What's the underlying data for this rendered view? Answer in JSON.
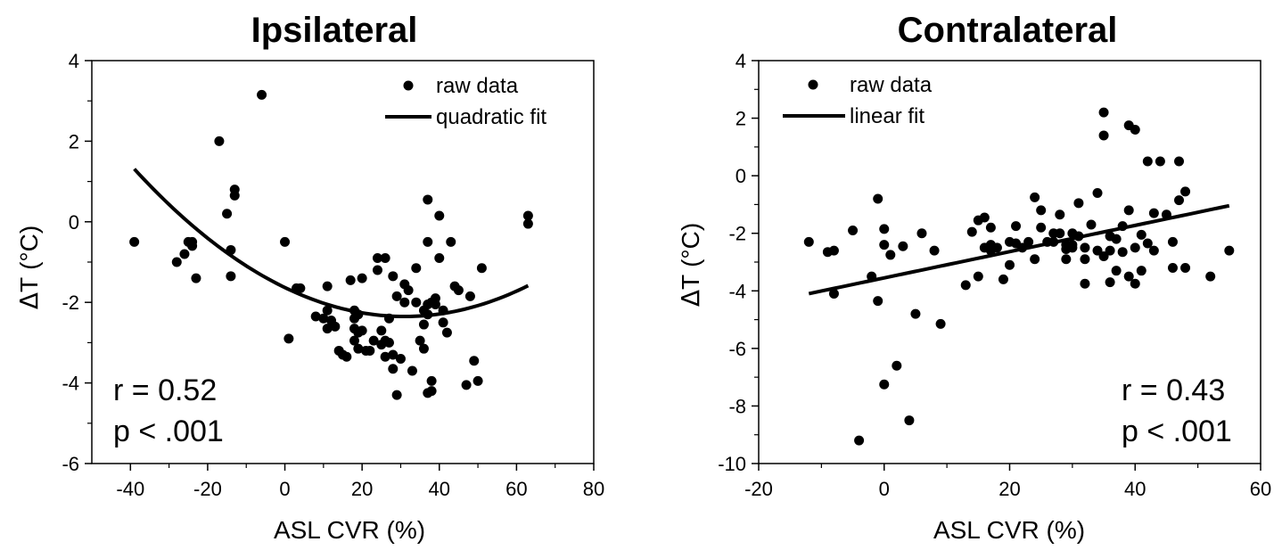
{
  "colors": {
    "marker": "#000000",
    "fit": "#000000",
    "axis": "#000000"
  },
  "chart_data": [
    {
      "type": "scatter",
      "title": "Ipsilateral",
      "xlabel": "ASL CVR (%)",
      "ylabel_delta": "Δ",
      "ylabel_var": "T",
      "ylabel_unit": "(°C)",
      "xlim": [
        -50,
        80
      ],
      "ylim": [
        -6,
        4
      ],
      "xticks": [
        -40,
        -20,
        0,
        20,
        40,
        60,
        80
      ],
      "yticks": [
        -6,
        -4,
        -2,
        0,
        2,
        4
      ],
      "legend": {
        "position": "top-right",
        "scatter_label": "raw data",
        "fit_label": "quadratic fit"
      },
      "annotation": {
        "r": "r = 0.52",
        "p": "p < .001",
        "position": "bottom-left"
      },
      "fit": {
        "kind": "quadratic",
        "x_range": [
          -39,
          63
        ],
        "center": 31,
        "vertex_y": -2.35,
        "curvature": 0.000747
      },
      "series": [
        {
          "name": "raw data",
          "x": [
            -39,
            -28,
            -26,
            -25,
            -24,
            -24,
            -23,
            -17,
            -15,
            -14,
            -14,
            -13,
            -13,
            -6,
            0,
            1,
            3,
            4,
            8,
            10,
            11,
            11,
            11,
            12,
            13,
            14,
            15,
            16,
            17,
            18,
            18,
            18,
            18,
            19,
            19,
            19,
            20,
            20,
            21,
            22,
            23,
            24,
            24,
            25,
            25,
            26,
            26,
            26,
            27,
            27,
            28,
            28,
            28,
            29,
            29,
            30,
            31,
            31,
            32,
            33,
            34,
            34,
            35,
            36,
            36,
            36,
            37,
            37,
            37,
            37,
            37,
            38,
            38,
            38,
            39,
            39,
            40,
            40,
            41,
            41,
            42,
            43,
            44,
            45,
            47,
            48,
            49,
            50,
            51,
            63,
            63
          ],
          "y": [
            -0.5,
            -1.0,
            -0.8,
            -0.5,
            -0.6,
            -0.5,
            -1.4,
            2.0,
            0.2,
            -0.7,
            -1.35,
            0.8,
            0.65,
            3.15,
            -0.5,
            -2.9,
            -1.65,
            -1.65,
            -2.35,
            -2.4,
            -2.2,
            -2.65,
            -1.6,
            -2.45,
            -2.6,
            -3.2,
            -3.3,
            -3.35,
            -1.45,
            -2.95,
            -2.4,
            -2.2,
            -2.65,
            -2.3,
            -2.75,
            -3.15,
            -1.4,
            -2.7,
            -3.2,
            -3.2,
            -2.95,
            -0.9,
            -1.2,
            -2.7,
            -3.05,
            -3.35,
            -2.95,
            -0.9,
            -2.4,
            -3.0,
            -3.3,
            -3.65,
            -1.35,
            -1.85,
            -4.3,
            -3.4,
            -1.55,
            -2.0,
            -1.7,
            -3.7,
            -2.0,
            -1.15,
            -2.95,
            -2.2,
            -3.15,
            -2.55,
            -0.5,
            0.55,
            -2.05,
            -4.25,
            -2.3,
            -3.95,
            -2.0,
            -4.2,
            -1.9,
            -2.05,
            -0.9,
            0.15,
            -2.5,
            -2.2,
            -2.75,
            -0.5,
            -1.6,
            -1.7,
            -4.05,
            -1.85,
            -3.45,
            -3.95,
            -1.15,
            -0.05,
            0.15
          ]
        }
      ]
    },
    {
      "type": "scatter",
      "title": "Contralateral",
      "xlabel": "ASL CVR (%)",
      "ylabel_delta": "Δ",
      "ylabel_var": "T",
      "ylabel_unit": "(°C)",
      "xlim": [
        -20,
        60
      ],
      "ylim": [
        -10,
        4
      ],
      "xticks": [
        -20,
        0,
        20,
        40,
        60
      ],
      "yticks": [
        -10,
        -8,
        -6,
        -4,
        -2,
        0,
        2,
        4
      ],
      "legend": {
        "position": "top-left",
        "scatter_label": "raw data",
        "fit_label": "linear fit"
      },
      "annotation": {
        "r": "r = 0.43",
        "p": "p < .001",
        "position": "bottom-right"
      },
      "fit": {
        "kind": "linear",
        "x_range": [
          -12,
          55
        ],
        "intercept": -3.55,
        "slope": 0.0456
      },
      "series": [
        {
          "name": "raw data",
          "x": [
            -12,
            -9,
            -8,
            -8,
            -5,
            -4,
            -2,
            -1,
            -1,
            0,
            0,
            0,
            1,
            2,
            3,
            4,
            5,
            6,
            8,
            9,
            13,
            14,
            15,
            15,
            16,
            16,
            17,
            17,
            17,
            18,
            19,
            20,
            20,
            21,
            21,
            22,
            23,
            24,
            24,
            25,
            25,
            26,
            27,
            27,
            28,
            28,
            29,
            29,
            29,
            30,
            30,
            30,
            31,
            31,
            32,
            32,
            32,
            33,
            34,
            34,
            35,
            35,
            35,
            36,
            36,
            36,
            37,
            37,
            38,
            38,
            39,
            39,
            39,
            40,
            40,
            40,
            41,
            41,
            42,
            42,
            43,
            43,
            44,
            45,
            46,
            46,
            47,
            47,
            48,
            48,
            52,
            55
          ],
          "y": [
            -2.3,
            -2.65,
            -2.6,
            -4.1,
            -1.9,
            -9.2,
            -3.5,
            -0.8,
            -4.35,
            -1.85,
            -2.4,
            -7.25,
            -2.75,
            -6.6,
            -2.45,
            -8.5,
            -4.8,
            -2.0,
            -2.6,
            -5.15,
            -3.8,
            -1.95,
            -1.55,
            -3.5,
            -2.5,
            -1.45,
            -2.6,
            -2.4,
            -1.8,
            -2.5,
            -3.6,
            -2.3,
            -3.1,
            -1.75,
            -2.35,
            -2.5,
            -2.3,
            -0.75,
            -2.9,
            -1.2,
            -1.8,
            -2.3,
            -2.0,
            -2.3,
            -2.0,
            -1.35,
            -2.4,
            -2.55,
            -2.9,
            -2.0,
            -2.4,
            -2.5,
            -0.95,
            -2.1,
            -2.5,
            -2.9,
            -3.75,
            -1.7,
            -0.6,
            -2.6,
            2.2,
            1.4,
            -2.8,
            -3.7,
            -2.1,
            -2.6,
            -2.2,
            -3.3,
            -1.75,
            -2.65,
            1.75,
            -1.2,
            -3.5,
            1.6,
            -2.5,
            -3.75,
            -2.05,
            -3.3,
            -2.35,
            0.5,
            -1.3,
            -2.6,
            0.5,
            -1.35,
            -2.3,
            -3.2,
            -0.85,
            0.5,
            -0.55,
            -3.2,
            -3.5,
            -2.6
          ]
        }
      ]
    }
  ]
}
